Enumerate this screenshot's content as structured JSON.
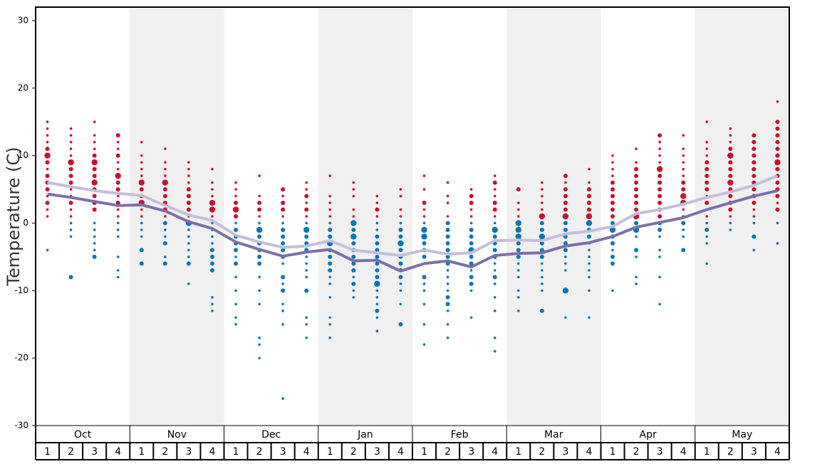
{
  "chart_data": {
    "type": "dotplot",
    "y_label": "Temperature (C)",
    "ylim": [
      -30,
      32
    ],
    "yticks": [
      -30,
      -20,
      -10,
      0,
      10,
      20,
      30
    ],
    "months": [
      "Oct",
      "Nov",
      "Dec",
      "Jan",
      "Feb",
      "Mar",
      "Apr",
      "May"
    ],
    "week_labels": [
      1,
      2,
      3,
      4
    ],
    "shade_color": "#f0f0f0",
    "warm_color": "#c8102e",
    "cold_color": "#0a74b3",
    "weeks": [
      {
        "temps": [
          15,
          14,
          13,
          12,
          11,
          10,
          9,
          8,
          7,
          6,
          5,
          4,
          3,
          2,
          1,
          -4
        ],
        "sizes": [
          1,
          1,
          1,
          1,
          2,
          3,
          2,
          1,
          2,
          2,
          2,
          1,
          2,
          1,
          1,
          1
        ]
      },
      {
        "temps": [
          14,
          13,
          12,
          11,
          10,
          9,
          8,
          7,
          6,
          5,
          4,
          3,
          2,
          1,
          0,
          -1,
          -2,
          -8
        ],
        "sizes": [
          1,
          1,
          1,
          1,
          1,
          3,
          2,
          2,
          2,
          1,
          1,
          2,
          1,
          1,
          1,
          1,
          1,
          2
        ]
      },
      {
        "temps": [
          15,
          13,
          12,
          11,
          10,
          9,
          8,
          7,
          6,
          5,
          4,
          3,
          2,
          0,
          -1,
          -2,
          -3,
          -4,
          -5
        ],
        "sizes": [
          1,
          1,
          1,
          1,
          2,
          3,
          2,
          2,
          3,
          2,
          2,
          2,
          2,
          1,
          1,
          1,
          1,
          1,
          2
        ]
      },
      {
        "temps": [
          13,
          12,
          11,
          10,
          9,
          8,
          7,
          6,
          5,
          4,
          3,
          2,
          1,
          0,
          -1,
          -2,
          -5,
          -7,
          -8
        ],
        "sizes": [
          2,
          1,
          1,
          2,
          1,
          1,
          3,
          2,
          2,
          1,
          2,
          1,
          1,
          1,
          1,
          1,
          1,
          1,
          1
        ]
      },
      {
        "temps": [
          12,
          10,
          9,
          8,
          7,
          6,
          5,
          4,
          3,
          2,
          1,
          0,
          -1,
          -2,
          -4,
          -6
        ],
        "sizes": [
          1,
          1,
          1,
          1,
          1,
          3,
          2,
          2,
          3,
          1,
          1,
          1,
          1,
          1,
          2,
          2
        ]
      },
      {
        "temps": [
          11,
          9,
          8,
          7,
          6,
          5,
          4,
          3,
          2,
          1,
          0,
          -1,
          -2,
          -3,
          -5,
          -6
        ],
        "sizes": [
          1,
          1,
          1,
          1,
          3,
          2,
          2,
          2,
          2,
          1,
          2,
          1,
          1,
          2,
          1,
          2
        ]
      },
      {
        "temps": [
          9,
          8,
          7,
          6,
          5,
          4,
          3,
          2,
          1,
          0,
          -1,
          -2,
          -3,
          -4,
          -5,
          -6,
          -9
        ],
        "sizes": [
          1,
          1,
          1,
          1,
          2,
          2,
          2,
          2,
          1,
          3,
          1,
          1,
          1,
          1,
          1,
          2,
          1
        ]
      },
      {
        "temps": [
          8,
          6,
          5,
          4,
          3,
          2,
          1,
          0,
          -1,
          -2,
          -3,
          -4,
          -5,
          -6,
          -7,
          -11,
          -12,
          -13
        ],
        "sizes": [
          1,
          1,
          1,
          1,
          3,
          3,
          1,
          1,
          1,
          1,
          1,
          2,
          2,
          2,
          2,
          1,
          1,
          1
        ]
      },
      {
        "temps": [
          6,
          5,
          4,
          3,
          2,
          1,
          0,
          -1,
          -2,
          -3,
          -4,
          -5,
          -6,
          -8,
          -10,
          -12,
          -14,
          -15
        ],
        "sizes": [
          1,
          1,
          1,
          2,
          3,
          2,
          1,
          2,
          2,
          2,
          2,
          1,
          2,
          1,
          1,
          1,
          1,
          1
        ]
      },
      {
        "temps": [
          7,
          4,
          3,
          2,
          1,
          0,
          -1,
          -2,
          -3,
          -4,
          -5,
          -6,
          -8,
          -10,
          -12,
          -17,
          -18,
          -20
        ],
        "sizes": [
          1,
          1,
          2,
          2,
          1,
          1,
          3,
          2,
          2,
          2,
          2,
          2,
          1,
          1,
          1,
          1,
          1,
          1
        ]
      },
      {
        "temps": [
          5,
          4,
          3,
          2,
          1,
          0,
          -1,
          -2,
          -3,
          -4,
          -5,
          -6,
          -8,
          -9,
          -10,
          -12,
          -13,
          -15,
          -26
        ],
        "sizes": [
          2,
          1,
          2,
          2,
          1,
          1,
          2,
          2,
          2,
          2,
          2,
          1,
          2,
          1,
          2,
          1,
          1,
          1,
          1
        ]
      },
      {
        "temps": [
          6,
          5,
          4,
          3,
          2,
          1,
          0,
          -1,
          -2,
          -3,
          -4,
          -5,
          -6,
          -7,
          -8,
          -10,
          -14,
          -15,
          -17
        ],
        "sizes": [
          1,
          1,
          2,
          1,
          2,
          1,
          1,
          3,
          2,
          2,
          2,
          1,
          1,
          1,
          1,
          2,
          1,
          1,
          1
        ]
      },
      {
        "temps": [
          7,
          4,
          3,
          2,
          1,
          0,
          -1,
          -2,
          -3,
          -4,
          -5,
          -6,
          -7,
          -8,
          -9,
          -11,
          -14,
          -15,
          -17
        ],
        "sizes": [
          1,
          1,
          1,
          1,
          1,
          1,
          2,
          2,
          3,
          2,
          2,
          2,
          2,
          1,
          1,
          1,
          1,
          1,
          1
        ]
      },
      {
        "temps": [
          6,
          5,
          4,
          2,
          1,
          0,
          -1,
          -2,
          -3,
          -4,
          -5,
          -6,
          -7,
          -8,
          -9,
          -10,
          -11
        ],
        "sizes": [
          1,
          1,
          1,
          1,
          1,
          3,
          2,
          3,
          2,
          2,
          2,
          2,
          2,
          1,
          2,
          1,
          1
        ]
      },
      {
        "temps": [
          4,
          3,
          2,
          1,
          0,
          -1,
          -2,
          -3,
          -4,
          -5,
          -6,
          -7,
          -8,
          -9,
          -10,
          -11,
          -12,
          -13,
          -14,
          -16
        ],
        "sizes": [
          1,
          1,
          2,
          1,
          1,
          1,
          2,
          2,
          2,
          2,
          2,
          2,
          2,
          3,
          1,
          1,
          1,
          2,
          1,
          1
        ]
      },
      {
        "temps": [
          5,
          4,
          2,
          1,
          0,
          -1,
          -2,
          -3,
          -4,
          -5,
          -6,
          -7,
          -8,
          -9,
          -10,
          -12,
          -15
        ],
        "sizes": [
          1,
          1,
          1,
          1,
          1,
          2,
          2,
          3,
          2,
          2,
          2,
          2,
          2,
          1,
          1,
          1,
          2
        ]
      },
      {
        "temps": [
          7,
          5,
          3,
          2,
          1,
          0,
          -1,
          -2,
          -3,
          -4,
          -5,
          -6,
          -8,
          -9,
          -10,
          -12,
          -15,
          -18
        ],
        "sizes": [
          1,
          1,
          2,
          1,
          1,
          1,
          3,
          3,
          2,
          2,
          2,
          1,
          2,
          1,
          1,
          1,
          1,
          1
        ]
      },
      {
        "temps": [
          6,
          4,
          3,
          1,
          0,
          -1,
          -2,
          -3,
          -4,
          -5,
          -6,
          -7,
          -8,
          -9,
          -10,
          -11,
          -12,
          -13,
          -15,
          -17
        ],
        "sizes": [
          1,
          1,
          1,
          1,
          2,
          2,
          2,
          2,
          2,
          2,
          2,
          1,
          1,
          1,
          1,
          2,
          2,
          1,
          1,
          1
        ]
      },
      {
        "temps": [
          5,
          4,
          3,
          2,
          1,
          0,
          -1,
          -2,
          -3,
          -4,
          -5,
          -6,
          -7,
          -8,
          -9,
          -10,
          -14
        ],
        "sizes": [
          1,
          2,
          2,
          1,
          1,
          1,
          2,
          2,
          2,
          3,
          2,
          2,
          1,
          2,
          2,
          1,
          1
        ]
      },
      {
        "temps": [
          7,
          6,
          5,
          4,
          3,
          2,
          1,
          0,
          -1,
          -2,
          -3,
          -4,
          -5,
          -6,
          -7,
          -8,
          -9,
          -11,
          -13,
          -17,
          -19
        ],
        "sizes": [
          1,
          2,
          1,
          1,
          2,
          2,
          1,
          1,
          3,
          2,
          2,
          2,
          2,
          1,
          1,
          2,
          1,
          1,
          1,
          1,
          1
        ]
      },
      {
        "temps": [
          5,
          3,
          2,
          1,
          0,
          -1,
          -2,
          -3,
          -4,
          -5,
          -6,
          -7,
          -8,
          -10,
          -11,
          -13
        ],
        "sizes": [
          2,
          1,
          1,
          1,
          3,
          3,
          3,
          2,
          2,
          2,
          1,
          1,
          1,
          1,
          1,
          1
        ]
      },
      {
        "temps": [
          6,
          5,
          4,
          3,
          2,
          1,
          0,
          -1,
          -2,
          -3,
          -4,
          -5,
          -6,
          -7,
          -8,
          -9,
          -10,
          -13
        ],
        "sizes": [
          1,
          1,
          1,
          1,
          1,
          3,
          2,
          2,
          3,
          2,
          2,
          2,
          1,
          1,
          1,
          1,
          1,
          2
        ]
      },
      {
        "temps": [
          7,
          6,
          5,
          4,
          3,
          2,
          1,
          0,
          -1,
          -2,
          -3,
          -4,
          -5,
          -6,
          -7,
          -10,
          -14
        ],
        "sizes": [
          2,
          1,
          2,
          2,
          2,
          2,
          3,
          2,
          2,
          2,
          2,
          2,
          1,
          1,
          1,
          3,
          1
        ]
      },
      {
        "temps": [
          8,
          6,
          5,
          4,
          3,
          2,
          1,
          0,
          -1,
          -2,
          -3,
          -4,
          -5,
          -6,
          -7,
          -8,
          -10,
          -14
        ],
        "sizes": [
          1,
          1,
          2,
          2,
          2,
          2,
          3,
          3,
          2,
          2,
          1,
          1,
          1,
          1,
          1,
          1,
          1,
          1
        ]
      },
      {
        "temps": [
          10,
          9,
          8,
          7,
          6,
          5,
          4,
          3,
          2,
          1,
          0,
          -1,
          -2,
          -3,
          -4,
          -5,
          -6,
          -10
        ],
        "sizes": [
          1,
          1,
          1,
          1,
          2,
          2,
          2,
          2,
          2,
          2,
          2,
          3,
          2,
          2,
          1,
          2,
          2,
          1
        ]
      },
      {
        "temps": [
          11,
          9,
          8,
          7,
          6,
          5,
          4,
          3,
          2,
          1,
          0,
          -1,
          -2,
          -4,
          -5,
          -8,
          -9
        ],
        "sizes": [
          1,
          1,
          2,
          2,
          2,
          2,
          2,
          2,
          2,
          3,
          2,
          3,
          1,
          2,
          1,
          1,
          1
        ]
      },
      {
        "temps": [
          13,
          12,
          11,
          10,
          9,
          8,
          7,
          6,
          5,
          4,
          3,
          2,
          1,
          0,
          -1,
          -2,
          -4,
          -5,
          -8,
          -12
        ],
        "sizes": [
          2,
          1,
          1,
          1,
          1,
          3,
          2,
          2,
          2,
          2,
          2,
          2,
          2,
          2,
          2,
          1,
          1,
          1,
          1,
          1
        ]
      },
      {
        "temps": [
          13,
          11,
          10,
          9,
          8,
          7,
          6,
          5,
          4,
          3,
          2,
          1,
          0,
          -1,
          -2,
          -4
        ],
        "sizes": [
          1,
          1,
          1,
          1,
          1,
          1,
          2,
          2,
          3,
          3,
          1,
          1,
          2,
          1,
          1,
          2
        ]
      },
      {
        "temps": [
          15,
          12,
          11,
          10,
          9,
          8,
          7,
          6,
          5,
          4,
          3,
          2,
          1,
          0,
          -1,
          -2,
          -3,
          -6
        ],
        "sizes": [
          1,
          1,
          1,
          1,
          2,
          2,
          2,
          2,
          2,
          1,
          2,
          1,
          1,
          1,
          2,
          1,
          1,
          1
        ]
      },
      {
        "temps": [
          14,
          13,
          12,
          11,
          10,
          9,
          8,
          7,
          6,
          5,
          4,
          3,
          2,
          1,
          0,
          -1
        ],
        "sizes": [
          1,
          1,
          1,
          2,
          3,
          2,
          2,
          2,
          3,
          2,
          2,
          2,
          2,
          1,
          1,
          1
        ]
      },
      {
        "temps": [
          13,
          12,
          11,
          10,
          9,
          8,
          7,
          6,
          5,
          4,
          3,
          2,
          1,
          0,
          -2,
          -4
        ],
        "sizes": [
          2,
          2,
          2,
          2,
          2,
          2,
          2,
          2,
          2,
          2,
          2,
          1,
          1,
          1,
          2,
          1
        ]
      },
      {
        "temps": [
          18,
          15,
          14,
          13,
          12,
          11,
          10,
          9,
          8,
          7,
          6,
          5,
          4,
          3,
          2,
          0,
          -3
        ],
        "sizes": [
          1,
          2,
          2,
          2,
          2,
          2,
          2,
          3,
          2,
          2,
          2,
          2,
          2,
          1,
          2,
          1,
          1
        ]
      }
    ],
    "series": [
      {
        "color": "#c3bedb",
        "values": [
          6.0,
          5.4,
          4.8,
          4.4,
          4.1,
          2.6,
          1.2,
          0.4,
          -1.8,
          -2.8,
          -3.6,
          -3.4,
          -2.6,
          -4.0,
          -4.4,
          -4.8,
          -4.0,
          -4.6,
          -4.4,
          -2.6,
          -2.5,
          -2.6,
          -1.6,
          -1.2,
          -0.5,
          1.4,
          2.0,
          2.8,
          3.8,
          4.6,
          5.6,
          7.0
        ]
      },
      {
        "color": "#7b70a8",
        "values": [
          4.3,
          3.8,
          3.2,
          2.6,
          2.7,
          1.8,
          0.2,
          -0.8,
          -2.8,
          -3.9,
          -4.9,
          -4.3,
          -3.9,
          -5.6,
          -5.5,
          -7.1,
          -6.0,
          -5.6,
          -6.5,
          -4.8,
          -4.5,
          -4.4,
          -3.4,
          -2.9,
          -2.0,
          -0.6,
          0.1,
          0.8,
          2.0,
          3.0,
          4.0,
          4.8
        ]
      }
    ]
  }
}
